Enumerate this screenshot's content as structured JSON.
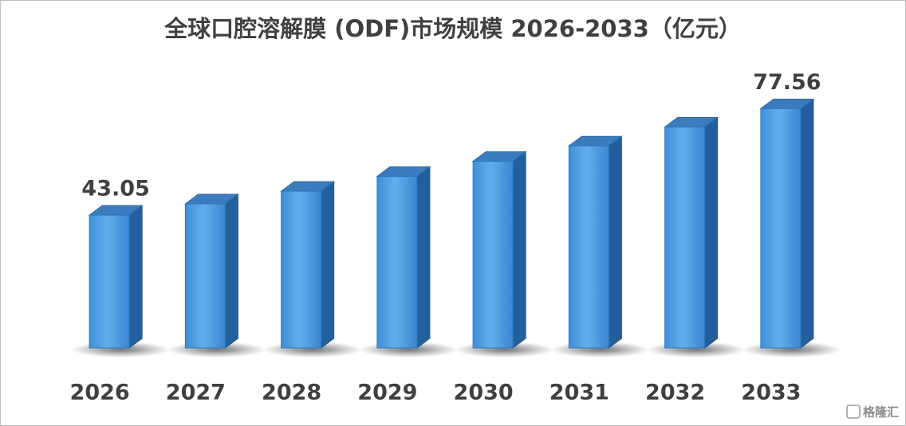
{
  "chart_data": {
    "type": "bar3d",
    "title": "全球口腔溶解膜 (ODF)市场规模 2026-2033（亿元）",
    "categories": [
      "2026",
      "2027",
      "2028",
      "2029",
      "2030",
      "2031",
      "2032",
      "2033"
    ],
    "values": [
      43.05,
      46.7,
      50.8,
      55.6,
      60.5,
      65.5,
      71.6,
      77.56
    ],
    "value_labels": [
      "43.05",
      null,
      null,
      null,
      null,
      null,
      null,
      "77.56"
    ],
    "color": "#4a9be0",
    "ylim": [
      0,
      80
    ],
    "watermark": "格隆汇"
  }
}
